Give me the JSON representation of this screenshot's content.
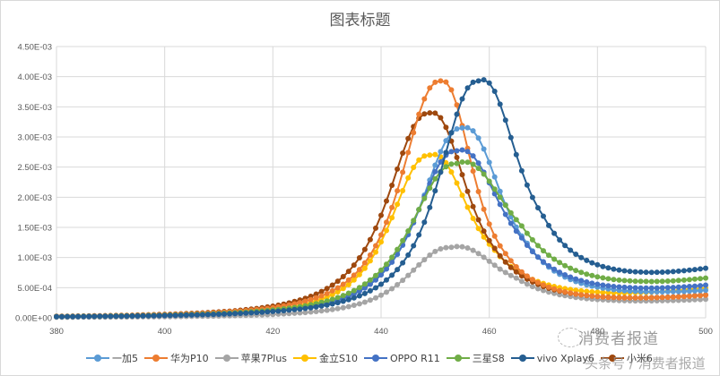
{
  "chart_data": {
    "type": "line",
    "title": "图表标题",
    "xlabel": "",
    "ylabel": "",
    "xlim": [
      380,
      500
    ],
    "ylim": [
      0,
      0.0045
    ],
    "x_ticks": [
      "380",
      "400",
      "420",
      "440",
      "460",
      "480",
      "500"
    ],
    "y_ticks": [
      "0.00E+00",
      "5.00E-04",
      "1.00E-03",
      "1.50E-03",
      "2.00E-03",
      "2.50E-03",
      "3.00E-03",
      "3.50E-03",
      "4.00E-03",
      "4.50E-03"
    ],
    "grid": true,
    "legend_position": "bottom",
    "x_start": 380,
    "x_step": 1,
    "value_scale": 1e-05,
    "value_note": "series values are in units of 1E-05; multiply by value_scale for actual values",
    "series": [
      {
        "name": "一加5",
        "color": "#5B9BD5",
        "peak_x": 455,
        "peak_value": 0.00315,
        "end_value": 0.00033
      },
      {
        "name": "华为P10",
        "color": "#ED7D31",
        "peak_x": 451,
        "peak_value": 0.00393,
        "end_value": 0.00028
      },
      {
        "name": "苹果7Plus",
        "color": "#A5A5A5",
        "peak_x": 453,
        "peak_value": 0.00117,
        "end_value": 0.00023
      },
      {
        "name": "金立S10",
        "color": "#FFC000",
        "peak_x": 449,
        "peak_value": 0.0027,
        "end_value": 0.00037
      },
      {
        "name": "OPPO R11",
        "color": "#4472C4",
        "peak_x": 454,
        "peak_value": 0.00277,
        "end_value": 0.00039
      },
      {
        "name": "三星S8",
        "color": "#70AD47",
        "peak_x": 454,
        "peak_value": 0.00256,
        "end_value": 0.00047
      },
      {
        "name": "vivo Xplay6",
        "color": "#255E91",
        "peak_x": 458,
        "peak_value": 0.00393,
        "end_value": 0.00062
      },
      {
        "name": "小米6",
        "color": "#9E480E",
        "peak_x": 449,
        "peak_value": 0.0034,
        "end_value": 0.00028
      }
    ],
    "shape_params": [
      {
        "left_width": 9.0,
        "right_width": 8.5,
        "tail_base": 28,
        "tail_rise": 6
      },
      {
        "left_width": 8.5,
        "right_width": 7.0,
        "tail_base": 22,
        "tail_rise": 6
      },
      {
        "left_width": 9.5,
        "right_width": 10.0,
        "tail_base": 20,
        "tail_rise": 4
      },
      {
        "left_width": 8.5,
        "right_width": 8.5,
        "tail_base": 30,
        "tail_rise": 8
      },
      {
        "left_width": 9.0,
        "right_width": 9.5,
        "tail_base": 32,
        "tail_rise": 8
      },
      {
        "left_width": 10.0,
        "right_width": 11.0,
        "tail_base": 38,
        "tail_rise": 10
      },
      {
        "left_width": 8.5,
        "right_width": 8.5,
        "tail_base": 50,
        "tail_rise": 12
      },
      {
        "left_width": 9.0,
        "right_width": 8.0,
        "tail_base": 22,
        "tail_rise": 6
      }
    ]
  },
  "watermark": {
    "line1": "消费者报道",
    "line2": "头条号 / 消费者报道"
  }
}
